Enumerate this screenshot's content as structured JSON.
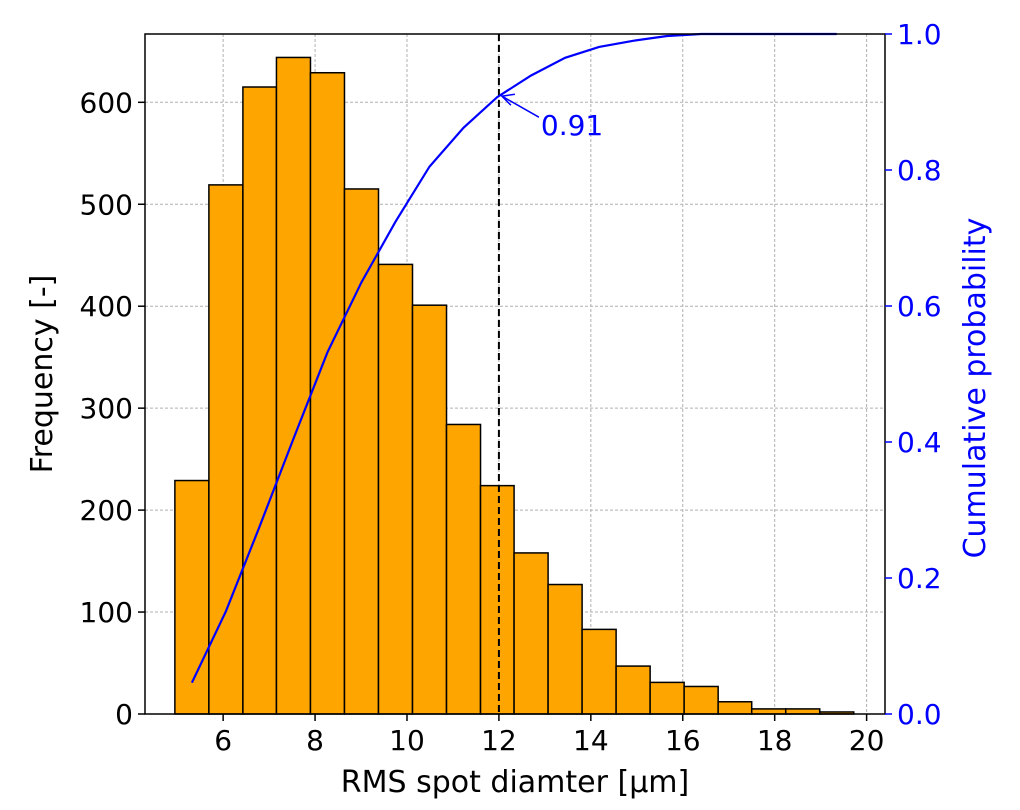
{
  "chart_data": {
    "type": "bar",
    "xlabel": "RMS spot diamter [μm]",
    "ylabel": "Frequency [-]",
    "y2label": "Cumulative probability",
    "xlim": [
      4.3,
      20.4
    ],
    "ylim": [
      0,
      667
    ],
    "y2lim": [
      0,
      1.0
    ],
    "xticks": [
      6,
      8,
      10,
      12,
      14,
      16,
      18,
      20
    ],
    "yticks": [
      0,
      100,
      200,
      300,
      400,
      500,
      600
    ],
    "y2ticks": [
      0.0,
      0.2,
      0.4,
      0.6,
      0.8,
      1.0
    ],
    "grid": true,
    "colors": {
      "bar_fill": "#FFA500",
      "bar_edge": "#000000",
      "cumulative_line": "#0000FF",
      "threshold_line": "#000000"
    },
    "histogram": {
      "bin_edges": [
        4.95,
        5.69,
        6.43,
        7.16,
        7.9,
        8.64,
        9.38,
        10.12,
        10.86,
        11.6,
        12.33,
        13.07,
        13.81,
        14.55,
        15.29,
        16.03,
        16.77,
        17.5,
        18.24,
        18.98,
        19.72
      ],
      "counts": [
        229,
        519,
        615,
        644,
        629,
        515,
        441,
        401,
        284,
        224,
        158,
        127,
        83,
        47,
        31,
        27,
        12,
        5,
        5,
        2
      ]
    },
    "series": [
      {
        "axis": "right",
        "type": "line",
        "x": [
          5.32,
          6.06,
          6.79,
          7.53,
          8.27,
          9.01,
          9.75,
          10.49,
          11.23,
          11.96,
          12.7,
          13.44,
          14.18,
          14.92,
          15.66,
          16.4,
          17.13,
          17.87,
          18.61,
          19.35
        ],
        "y": [
          0.046,
          0.151,
          0.275,
          0.405,
          0.532,
          0.635,
          0.724,
          0.805,
          0.862,
          0.907,
          0.939,
          0.965,
          0.981,
          0.99,
          0.997,
          1.0,
          1.0,
          1.0,
          1.0,
          1.0
        ]
      }
    ],
    "threshold": {
      "x": 12,
      "y": 0.91
    },
    "annotation": {
      "text": "0.91"
    }
  }
}
